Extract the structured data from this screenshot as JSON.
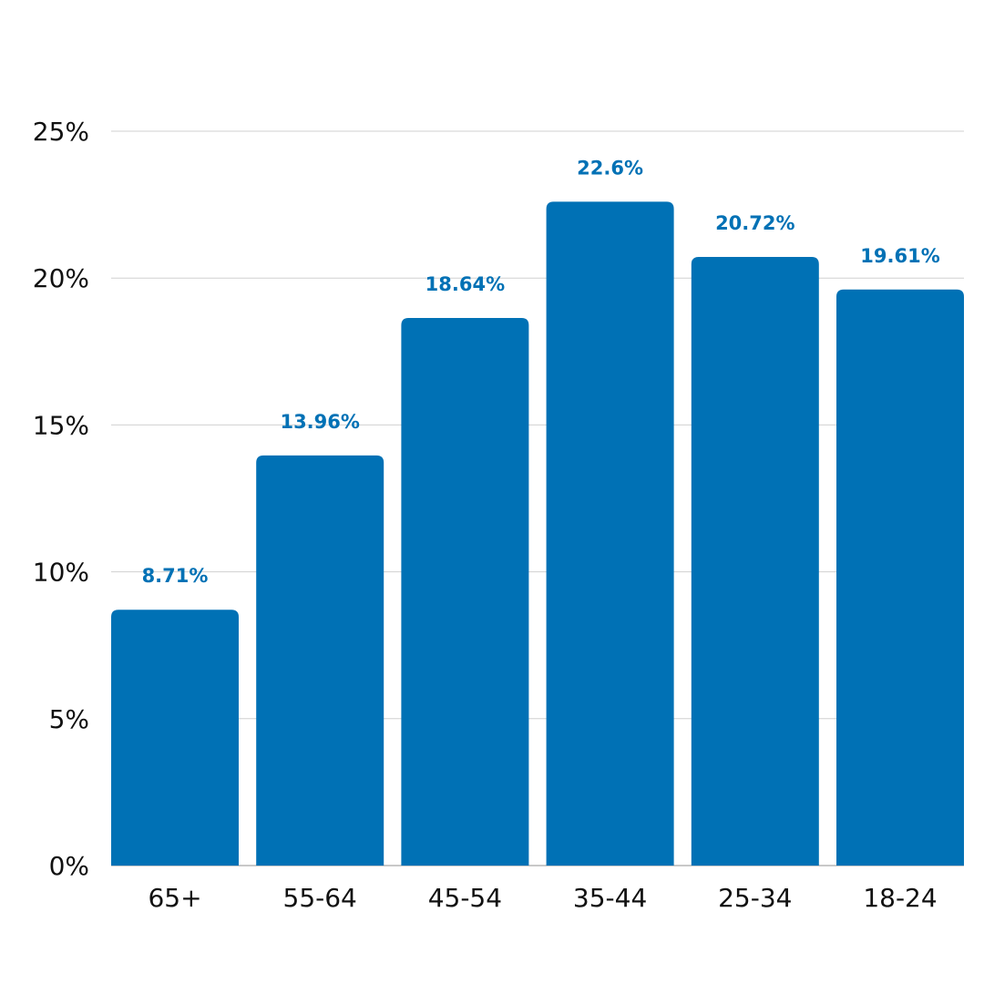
{
  "chart_data": {
    "type": "bar",
    "categories": [
      "65+",
      "55-64",
      "45-54",
      "35-44",
      "25-34",
      "18-24"
    ],
    "values": [
      8.71,
      13.96,
      18.64,
      22.6,
      20.72,
      19.61
    ],
    "data_labels": [
      "8.71%",
      "13.96%",
      "18.64%",
      "22.6%",
      "20.72%",
      "19.61%"
    ],
    "ylim": [
      0,
      25
    ],
    "yticks": [
      0,
      5,
      10,
      15,
      20,
      25
    ],
    "ytick_labels": [
      "0%",
      "5%",
      "10%",
      "15%",
      "20%",
      "25%"
    ],
    "grid": true,
    "bar_color": "#0071b5",
    "label_color": "#0071b5"
  }
}
